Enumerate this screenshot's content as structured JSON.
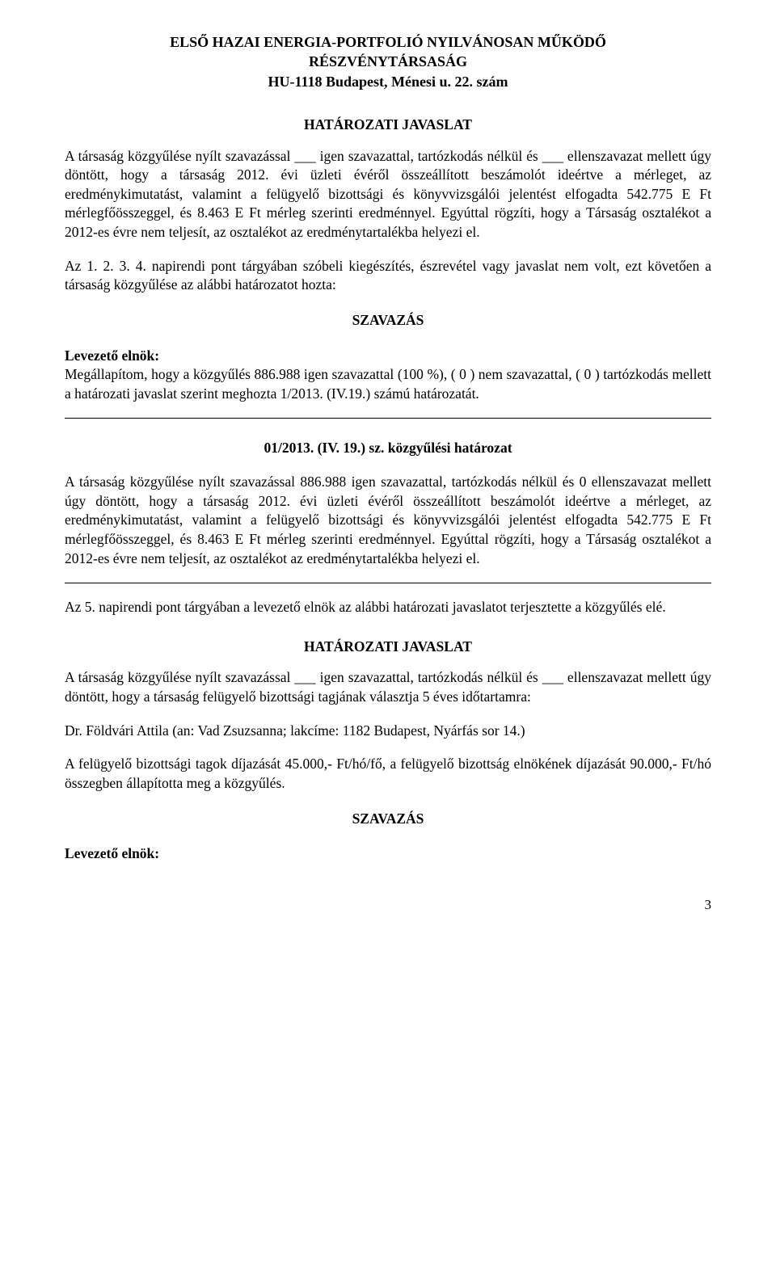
{
  "header": {
    "line1": "ELSŐ HAZAI ENERGIA-PORTFOLIÓ NYILVÁNOSAN MŰKÖDŐ",
    "line2": "RÉSZVÉNYTÁRSASÁG",
    "line3": "HU-1118 Budapest, Ménesi u. 22. szám"
  },
  "section1": {
    "title": "HATÁROZATI JAVASLAT",
    "para": "A társaság közgyűlése nyílt szavazással ___ igen szavazattal, tartózkodás nélkül és ___ ellenszavazat mellett úgy döntött, hogy a társaság 2012. évi üzleti évéről összeállított beszámolót ideértve a mérleget, az eredménykimutatást, valamint a felügyelő bizottsági és könyvvizsgálói jelentést elfogadta  542.775 E Ft mérlegfőösszeggel, és 8.463 E Ft mérleg szerinti eredménnyel. Egyúttal rögzíti, hogy a Társaság osztalékot a 2012-es évre nem teljesít, az osztalékot az eredménytartalékba helyezi el."
  },
  "section2": {
    "para": "Az 1. 2. 3. 4. napirendi pont tárgyában szóbeli kiegészítés, észrevétel vagy javaslat nem volt, ezt követően a társaság közgyűlése az alábbi határozatot hozta:"
  },
  "voting_label": "SZAVAZÁS",
  "lead_label": "Levezető elnök:",
  "section3": {
    "para": "Megállapítom, hogy a közgyűlés 886.988 igen szavazattal (100 %), ( 0 ) nem szavazattal, ( 0 ) tartózkodás mellett a határozati javaslat szerint meghozta 1/2013. (IV.19.) számú határozatát."
  },
  "resolution": {
    "title": "01/2013. (IV. 19.) sz. közgyűlési határozat",
    "para": "A társaság közgyűlése nyílt szavazással 886.988 igen szavazattal, tartózkodás nélkül és 0 ellenszavazat mellett úgy döntött, hogy a társaság 2012. évi üzleti évéről összeállított beszámolót ideértve a mérleget, az eredménykimutatást, valamint a felügyelő bizottsági és könyvvizsgálói jelentést elfogadta 542.775 E Ft mérlegfőösszeggel, és 8.463 E Ft mérleg szerinti eredménnyel. Egyúttal rögzíti, hogy a Társaság osztalékot a 2012-es évre nem teljesít, az osztalékot az eredménytartalékba helyezi el."
  },
  "section4": {
    "para": "Az 5. napirendi pont tárgyában a levezető elnök az alábbi határozati javaslatot terjesztette a közgyűlés elé."
  },
  "section5": {
    "title": "HATÁROZATI JAVASLAT",
    "para": "A társaság közgyűlése nyílt szavazással ___ igen szavazattal, tartózkodás nélkül és ___ ellenszavazat mellett úgy döntött, hogy a társaság felügyelő bizottsági tagjának választja 5 éves időtartamra:"
  },
  "section6": {
    "para": "Dr.  Földvári Attila (an: Vad Zsuzsanna; lakcíme: 1182 Budapest, Nyárfás sor 14.)"
  },
  "section7": {
    "para": "A felügyelő bizottsági tagok díjazását 45.000,- Ft/hó/fő, a felügyelő bizottság elnökének díjazását 90.000,- Ft/hó összegben állapította meg a közgyűlés."
  },
  "page_number": "3"
}
